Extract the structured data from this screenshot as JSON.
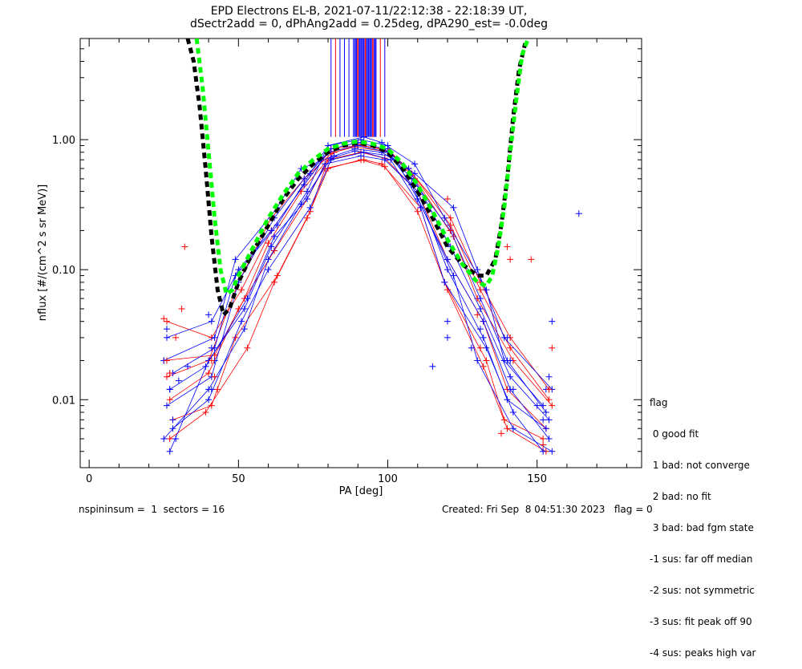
{
  "title_line1": "EPD Electrons EL-B, 2021-07-11/22:12:38 - 22:18:39 UT,",
  "title_line2": "dSectr2add = 0, dPhAng2add = 0.25deg, dPA290_est=  -0.0deg",
  "legend": {
    "header": "flag",
    "items": [
      " 0 good fit",
      " 1 bad: not converge",
      " 2 bad: no fit",
      " 3 bad: bad fgm state",
      "-1 sus: far off median",
      "-2 sus: not symmetric",
      "-3 sus: fit peak off 90",
      "-4 sus: peaks high var"
    ]
  },
  "footer_left": "nspininsum =  1  sectors = 16",
  "footer_right": "Created: Fri Sep  8 04:51:30 2023   flag = 0",
  "colors": {
    "series_a": "#0000ff",
    "series_b": "#ff0000",
    "fit_black": "#000000",
    "fit_green": "#00ff00"
  },
  "chart_data": {
    "type": "line",
    "xlabel": "PA [deg]",
    "ylabel": "nflux [#/(cm^2 s sr MeV)]",
    "xlim": [
      -3,
      185
    ],
    "ylim": [
      0.003,
      6.0
    ],
    "yscale": "log",
    "xticks": [
      0,
      50,
      100,
      150
    ],
    "xtick_labels": [
      "0",
      "50",
      "100",
      "150"
    ],
    "yticks": [
      0.01,
      0.1,
      1.0
    ],
    "ytick_labels": [
      "0.01",
      "0.10",
      "1.00"
    ],
    "series_a_profiles": [
      {
        "x": [
          26,
          41,
          50,
          62,
          72,
          81,
          90,
          99,
          108,
          121,
          131,
          140,
          153
        ],
        "y": [
          0.009,
          0.015,
          0.08,
          0.25,
          0.5,
          0.85,
          0.95,
          0.85,
          0.5,
          0.2,
          0.06,
          0.02,
          0.008
        ]
      },
      {
        "x": [
          27,
          40,
          52,
          61,
          73,
          80,
          91,
          100,
          110,
          120,
          132,
          141,
          154
        ],
        "y": [
          0.004,
          0.02,
          0.05,
          0.15,
          0.4,
          0.9,
          1.0,
          0.9,
          0.35,
          0.12,
          0.04,
          0.012,
          0.005
        ]
      },
      {
        "x": [
          25,
          42,
          49,
          63,
          71,
          82,
          89,
          98,
          109,
          122,
          130,
          139,
          155
        ],
        "y": [
          0.02,
          0.03,
          0.12,
          0.3,
          0.6,
          0.75,
          0.85,
          0.8,
          0.55,
          0.3,
          0.1,
          0.03,
          0.012
        ]
      },
      {
        "x": [
          28,
          40,
          51,
          60,
          74,
          81,
          92,
          101,
          111,
          119,
          133,
          142,
          152
        ],
        "y": [
          0.006,
          0.01,
          0.04,
          0.1,
          0.3,
          0.7,
          0.8,
          0.7,
          0.3,
          0.08,
          0.025,
          0.008,
          0.004
        ]
      },
      {
        "x": [
          26,
          41,
          50,
          61,
          72,
          80,
          90,
          100,
          107,
          121,
          131,
          141,
          154
        ],
        "y": [
          0.03,
          0.04,
          0.1,
          0.2,
          0.45,
          0.8,
          0.9,
          0.8,
          0.6,
          0.15,
          0.05,
          0.015,
          0.007
        ]
      },
      {
        "x": [
          27,
          39,
          53,
          62,
          73,
          79,
          91,
          99,
          110,
          120,
          132,
          140,
          153
        ],
        "y": [
          0.012,
          0.018,
          0.06,
          0.18,
          0.35,
          0.65,
          0.75,
          0.7,
          0.4,
          0.1,
          0.03,
          0.01,
          0.006
        ]
      },
      {
        "x": [
          25,
          40,
          52,
          60,
          71,
          81,
          89,
          101,
          108,
          122,
          130,
          142,
          155
        ],
        "y": [
          0.005,
          0.012,
          0.035,
          0.12,
          0.32,
          0.72,
          0.82,
          0.75,
          0.45,
          0.09,
          0.02,
          0.006,
          0.004
        ]
      },
      {
        "x": [
          28,
          42,
          49,
          63,
          74,
          80,
          92,
          98,
          109,
          119,
          133,
          139,
          152
        ],
        "y": [
          0.016,
          0.025,
          0.09,
          0.22,
          0.55,
          0.9,
          1.05,
          0.95,
          0.65,
          0.25,
          0.07,
          0.02,
          0.009
        ]
      }
    ],
    "series_b_profiles": [
      {
        "x": [
          26,
          41,
          51,
          61,
          72,
          81,
          90,
          100,
          108,
          121,
          131,
          141,
          154
        ],
        "y": [
          0.04,
          0.03,
          0.07,
          0.2,
          0.45,
          0.85,
          0.9,
          0.85,
          0.55,
          0.25,
          0.08,
          0.03,
          0.012
        ]
      },
      {
        "x": [
          27,
          40,
          50,
          62,
          73,
          80,
          91,
          99,
          110,
          120,
          132,
          140,
          153
        ],
        "y": [
          0.01,
          0.016,
          0.05,
          0.14,
          0.35,
          0.7,
          0.8,
          0.72,
          0.4,
          0.12,
          0.04,
          0.012,
          0.006
        ]
      },
      {
        "x": [
          25,
          42,
          52,
          60,
          71,
          82,
          89,
          101,
          109,
          122,
          130,
          142,
          155
        ],
        "y": [
          0.02,
          0.022,
          0.06,
          0.16,
          0.4,
          0.8,
          0.88,
          0.8,
          0.5,
          0.18,
          0.06,
          0.02,
          0.009
        ]
      },
      {
        "x": [
          28,
          41,
          49,
          63,
          74,
          79,
          92,
          98,
          111,
          119,
          133,
          139,
          152
        ],
        "y": [
          0.007,
          0.009,
          0.03,
          0.09,
          0.28,
          0.6,
          0.7,
          0.65,
          0.3,
          0.08,
          0.02,
          0.007,
          0.005
        ]
      },
      {
        "x": [
          26,
          40,
          50,
          61,
          72,
          81,
          90,
          100,
          107,
          121,
          131,
          141,
          154
        ],
        "y": [
          0.015,
          0.02,
          0.08,
          0.25,
          0.5,
          0.78,
          0.92,
          0.82,
          0.6,
          0.22,
          0.07,
          0.025,
          0.01
        ]
      },
      {
        "x": [
          27,
          39,
          53,
          62,
          73,
          80,
          91,
          99,
          110,
          120,
          132,
          140,
          153
        ],
        "y": [
          0.005,
          0.008,
          0.025,
          0.08,
          0.25,
          0.6,
          0.7,
          0.62,
          0.28,
          0.07,
          0.018,
          0.006,
          0.004
        ]
      }
    ],
    "scatter_a": {
      "x": [
        26,
        27,
        28,
        29,
        30,
        40,
        41,
        42,
        41,
        33,
        120,
        131,
        140,
        141,
        142,
        150,
        152,
        153,
        154,
        155,
        164,
        115,
        120,
        128
      ],
      "y": [
        0.035,
        0.012,
        0.007,
        0.005,
        0.014,
        0.045,
        0.025,
        0.02,
        0.012,
        0.018,
        0.04,
        0.035,
        0.03,
        0.02,
        0.012,
        0.009,
        0.007,
        0.012,
        0.015,
        0.04,
        0.27,
        0.018,
        0.03,
        0.025
      ]
    },
    "scatter_b": {
      "x": [
        25,
        26,
        27,
        29,
        31,
        32,
        41,
        42,
        43,
        120,
        121,
        130,
        131,
        138,
        140,
        141,
        148,
        152,
        154,
        155
      ],
      "y": [
        0.042,
        0.02,
        0.016,
        0.03,
        0.05,
        0.15,
        0.02,
        0.015,
        0.012,
        0.35,
        0.2,
        0.045,
        0.025,
        0.0055,
        0.15,
        0.12,
        0.12,
        0.0045,
        0.012,
        0.025
      ]
    },
    "high_lines": {
      "x_start": 80,
      "x_end": 100,
      "dense_start": 89,
      "dense_end": 96,
      "y_bottom": 1.05,
      "y_top": 6.0
    },
    "fit_black": {
      "x": [
        33,
        35,
        37,
        39,
        41,
        43,
        45,
        47,
        50,
        55,
        60,
        65,
        70,
        75,
        80,
        85,
        90,
        95,
        100,
        105,
        110,
        115,
        120,
        125,
        130,
        133,
        136,
        138,
        140,
        142,
        144,
        146
      ],
      "y": [
        6.0,
        4.0,
        1.8,
        0.6,
        0.18,
        0.07,
        0.045,
        0.05,
        0.08,
        0.14,
        0.22,
        0.35,
        0.5,
        0.65,
        0.8,
        0.9,
        0.95,
        0.9,
        0.8,
        0.6,
        0.4,
        0.25,
        0.15,
        0.11,
        0.09,
        0.09,
        0.12,
        0.22,
        0.5,
        1.5,
        3.5,
        5.5
      ]
    },
    "fit_green": {
      "x": [
        36,
        38,
        40,
        42,
        44,
        46,
        48,
        50,
        55,
        60,
        65,
        70,
        75,
        80,
        85,
        90,
        95,
        100,
        105,
        110,
        115,
        120,
        125,
        130,
        133,
        135,
        137,
        139,
        141,
        143,
        145,
        147
      ],
      "y": [
        6.0,
        2.5,
        0.8,
        0.25,
        0.1,
        0.065,
        0.07,
        0.09,
        0.15,
        0.25,
        0.38,
        0.55,
        0.7,
        0.85,
        0.93,
        0.97,
        0.93,
        0.85,
        0.65,
        0.45,
        0.28,
        0.17,
        0.11,
        0.08,
        0.075,
        0.09,
        0.15,
        0.3,
        0.8,
        2.0,
        4.5,
        6.0
      ]
    }
  }
}
